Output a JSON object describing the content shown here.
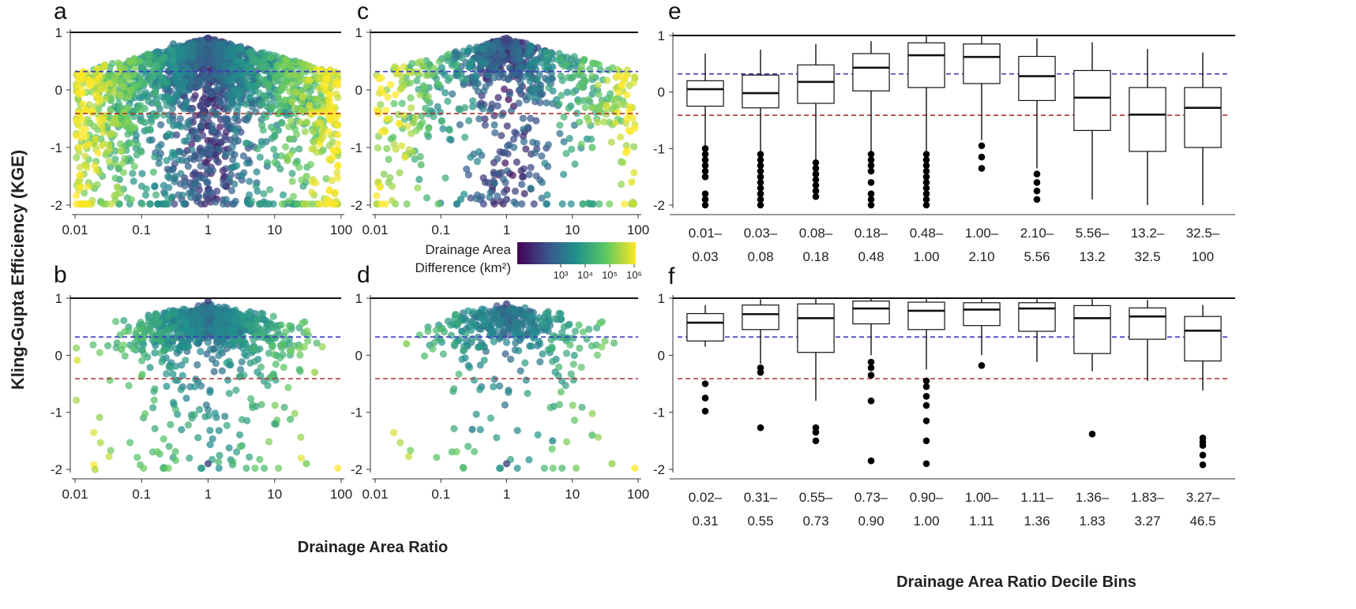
{
  "figure": {
    "ylabel": "Kling-Gupta Efficiency (KGE)",
    "xlabel_scatter": "Drainage Area Ratio",
    "xlabel_box": "Drainage Area Ratio Decile Bins",
    "colorbar": {
      "title_line1": "Drainage Area",
      "title_line2": "Difference (km²)",
      "ticks": [
        "10³",
        "10⁴",
        "10⁵",
        "10⁶"
      ],
      "colors": [
        "#440154",
        "#3b528b",
        "#21908d",
        "#5dc863",
        "#fde725"
      ]
    },
    "reference_lines": {
      "solid_black": 1,
      "dashed_blue": 0.32,
      "dashed_red": -0.41,
      "blue_color": "#3b3bbf",
      "red_color": "#b03030"
    }
  },
  "chart_data": [
    {
      "panel": "a",
      "type": "scatter",
      "xscale": "log",
      "xlim": [
        0.01,
        100
      ],
      "ylim": [
        -2,
        1
      ],
      "xticks": [
        "0.01",
        "0.1",
        "1",
        "10",
        "100"
      ],
      "yticks": [
        "-2",
        "-1",
        "0",
        "1"
      ],
      "density": "high",
      "spread": "full",
      "points_sample": [
        [
          0.02,
          0.3
        ],
        [
          0.05,
          -0.5
        ],
        [
          0.1,
          0.4
        ],
        [
          0.3,
          0.8
        ],
        [
          1,
          0.9
        ],
        [
          1,
          -1.9
        ],
        [
          3,
          0.6
        ],
        [
          10,
          -0.8
        ],
        [
          30,
          -1.5
        ],
        [
          80,
          -1.8
        ]
      ]
    },
    {
      "panel": "b",
      "type": "scatter",
      "xscale": "log",
      "xlim": [
        0.01,
        100
      ],
      "ylim": [
        -2,
        1
      ],
      "xticks": [
        "0.01",
        "0.1",
        "1",
        "10",
        "100"
      ],
      "yticks": [
        "-2",
        "-1",
        "0",
        "1"
      ],
      "density": "medium",
      "spread": "narrow",
      "points_sample": [
        [
          0.02,
          -2.0
        ],
        [
          0.05,
          0.1
        ],
        [
          0.3,
          0.6
        ],
        [
          1,
          0.95
        ],
        [
          1,
          -1.9
        ],
        [
          3,
          0.4
        ],
        [
          10,
          -1.2
        ],
        [
          30,
          -1.9
        ],
        [
          40,
          -0.3
        ]
      ]
    },
    {
      "panel": "c",
      "type": "scatter",
      "xscale": "log",
      "xlim": [
        0.01,
        100
      ],
      "ylim": [
        -2,
        1
      ],
      "xticks": [
        "0.01",
        "0.1",
        "1",
        "10",
        "100"
      ],
      "yticks": [
        "-2",
        "-1",
        "0",
        "1"
      ],
      "density": "medium",
      "spread": "full",
      "points_sample": [
        [
          0.02,
          0.4
        ],
        [
          0.05,
          -1.3
        ],
        [
          0.2,
          -1.9
        ],
        [
          1,
          0.9
        ],
        [
          1,
          -1.9
        ],
        [
          5,
          0.4
        ],
        [
          20,
          -1.0
        ],
        [
          80,
          -1.6
        ]
      ]
    },
    {
      "panel": "d",
      "type": "scatter",
      "xscale": "log",
      "xlim": [
        0.01,
        100
      ],
      "ylim": [
        -2,
        1
      ],
      "xticks": [
        "0.01",
        "0.1",
        "1",
        "10",
        "100"
      ],
      "yticks": [
        "-2",
        "-1",
        "0",
        "1"
      ],
      "density": "low",
      "spread": "narrow",
      "points_sample": [
        [
          0.03,
          0.2
        ],
        [
          0.3,
          -1.3
        ],
        [
          1,
          0.9
        ],
        [
          1,
          -1.9
        ],
        [
          5,
          -1.5
        ],
        [
          20,
          -1.4
        ],
        [
          40,
          -1.9
        ]
      ]
    },
    {
      "panel": "e",
      "type": "box",
      "ylim": [
        -2,
        1
      ],
      "yticks": [
        "-2",
        "-1",
        "0",
        "1"
      ],
      "categories": [
        [
          "0.01–",
          "0.03"
        ],
        [
          "0.03–",
          "0.08"
        ],
        [
          "0.08–",
          "0.18"
        ],
        [
          "0.18–",
          "0.48"
        ],
        [
          "0.48–",
          "1.00"
        ],
        [
          "1.00–",
          "2.10"
        ],
        [
          "2.10–",
          "5.56"
        ],
        [
          "5.56–",
          "13.2"
        ],
        [
          "13.2–",
          "32.5"
        ],
        [
          "32.5–",
          "100"
        ]
      ],
      "boxes": [
        {
          "q1": -0.25,
          "median": 0.05,
          "q3": 0.2,
          "whisker_low": -0.95,
          "whisker_high": 0.68,
          "outliers": [
            -1.0,
            -1.1,
            -1.2,
            -1.3,
            -1.4,
            -1.5,
            -1.8,
            -1.9,
            -2.0
          ]
        },
        {
          "q1": -0.28,
          "median": -0.02,
          "q3": 0.3,
          "whisker_low": -1.05,
          "whisker_high": 0.75,
          "outliers": [
            -1.1,
            -1.2,
            -1.3,
            -1.4,
            -1.5,
            -1.6,
            -1.7,
            -1.8,
            -1.9,
            -2.0
          ]
        },
        {
          "q1": -0.2,
          "median": 0.18,
          "q3": 0.48,
          "whisker_low": -1.2,
          "whisker_high": 0.85,
          "outliers": [
            -1.25,
            -1.35,
            -1.45,
            -1.55,
            -1.65,
            -1.75,
            -1.85
          ]
        },
        {
          "q1": 0.02,
          "median": 0.43,
          "q3": 0.68,
          "whisker_low": -1.05,
          "whisker_high": 0.9,
          "outliers": [
            -1.1,
            -1.2,
            -1.3,
            -1.4,
            -1.6,
            -1.8,
            -1.9,
            -2.0
          ]
        },
        {
          "q1": 0.08,
          "median": 0.65,
          "q3": 0.87,
          "whisker_low": -1.05,
          "whisker_high": 1.0,
          "outliers": [
            -1.1,
            -1.2,
            -1.3,
            -1.4,
            -1.5,
            -1.6,
            -1.7,
            -1.8,
            -1.9,
            -2.0
          ]
        },
        {
          "q1": 0.15,
          "median": 0.62,
          "q3": 0.85,
          "whisker_low": -0.85,
          "whisker_high": 1.0,
          "outliers": [
            -0.95,
            -1.15,
            -1.35
          ]
        },
        {
          "q1": -0.15,
          "median": 0.28,
          "q3": 0.63,
          "whisker_low": -1.35,
          "whisker_high": 0.95,
          "outliers": [
            -1.45,
            -1.6,
            -1.75,
            -1.9
          ]
        },
        {
          "q1": -0.68,
          "median": -0.1,
          "q3": 0.38,
          "whisker_low": -1.9,
          "whisker_high": 0.88,
          "outliers": []
        },
        {
          "q1": -1.05,
          "median": -0.4,
          "q3": 0.08,
          "whisker_low": -2.0,
          "whisker_high": 0.76,
          "outliers": []
        },
        {
          "q1": -0.98,
          "median": -0.28,
          "q3": 0.08,
          "whisker_low": -2.0,
          "whisker_high": 0.7,
          "outliers": []
        }
      ]
    },
    {
      "panel": "f",
      "type": "box",
      "ylim": [
        -2,
        1
      ],
      "yticks": [
        "-2",
        "-1",
        "0",
        "1"
      ],
      "categories": [
        [
          "0.02–",
          "0.31"
        ],
        [
          "0.31–",
          "0.55"
        ],
        [
          "0.55–",
          "0.73"
        ],
        [
          "0.73–",
          "0.90"
        ],
        [
          "0.90–",
          "1.00"
        ],
        [
          "1.00–",
          "1.11"
        ],
        [
          "1.11–",
          "1.36"
        ],
        [
          "1.36–",
          "1.83"
        ],
        [
          "1.83–",
          "3.27"
        ],
        [
          "3.27–",
          "46.5"
        ]
      ],
      "boxes": [
        {
          "q1": 0.25,
          "median": 0.57,
          "q3": 0.73,
          "whisker_low": 0.15,
          "whisker_high": 0.88,
          "outliers": [
            -0.5,
            -0.75,
            -0.98
          ]
        },
        {
          "q1": 0.45,
          "median": 0.72,
          "q3": 0.88,
          "whisker_low": -0.15,
          "whisker_high": 0.98,
          "outliers": [
            -0.22,
            -0.3,
            -1.27
          ]
        },
        {
          "q1": 0.05,
          "median": 0.65,
          "q3": 0.9,
          "whisker_low": -0.8,
          "whisker_high": 1.0,
          "outliers": [
            -1.27,
            -1.35,
            -1.5
          ]
        },
        {
          "q1": 0.55,
          "median": 0.82,
          "q3": 0.95,
          "whisker_low": 0.0,
          "whisker_high": 1.0,
          "outliers": [
            -0.12,
            -0.22,
            -0.35,
            -0.8,
            -1.85
          ]
        },
        {
          "q1": 0.45,
          "median": 0.78,
          "q3": 0.93,
          "whisker_low": -0.25,
          "whisker_high": 1.0,
          "outliers": [
            -0.45,
            -0.55,
            -0.72,
            -0.88,
            -1.15,
            -1.5,
            -1.9
          ]
        },
        {
          "q1": 0.52,
          "median": 0.8,
          "q3": 0.92,
          "whisker_low": 0.0,
          "whisker_high": 1.0,
          "outliers": [
            -0.18
          ]
        },
        {
          "q1": 0.42,
          "median": 0.82,
          "q3": 0.92,
          "whisker_low": -0.12,
          "whisker_high": 1.0,
          "outliers": []
        },
        {
          "q1": 0.03,
          "median": 0.65,
          "q3": 0.87,
          "whisker_low": -0.28,
          "whisker_high": 1.0,
          "outliers": [
            -1.38
          ]
        },
        {
          "q1": 0.28,
          "median": 0.68,
          "q3": 0.83,
          "whisker_low": -0.45,
          "whisker_high": 0.97,
          "outliers": []
        },
        {
          "q1": -0.1,
          "median": 0.43,
          "q3": 0.68,
          "whisker_low": -0.62,
          "whisker_high": 0.88,
          "outliers": [
            -1.45,
            -1.52,
            -1.58,
            -1.75,
            -1.92
          ]
        }
      ]
    }
  ]
}
